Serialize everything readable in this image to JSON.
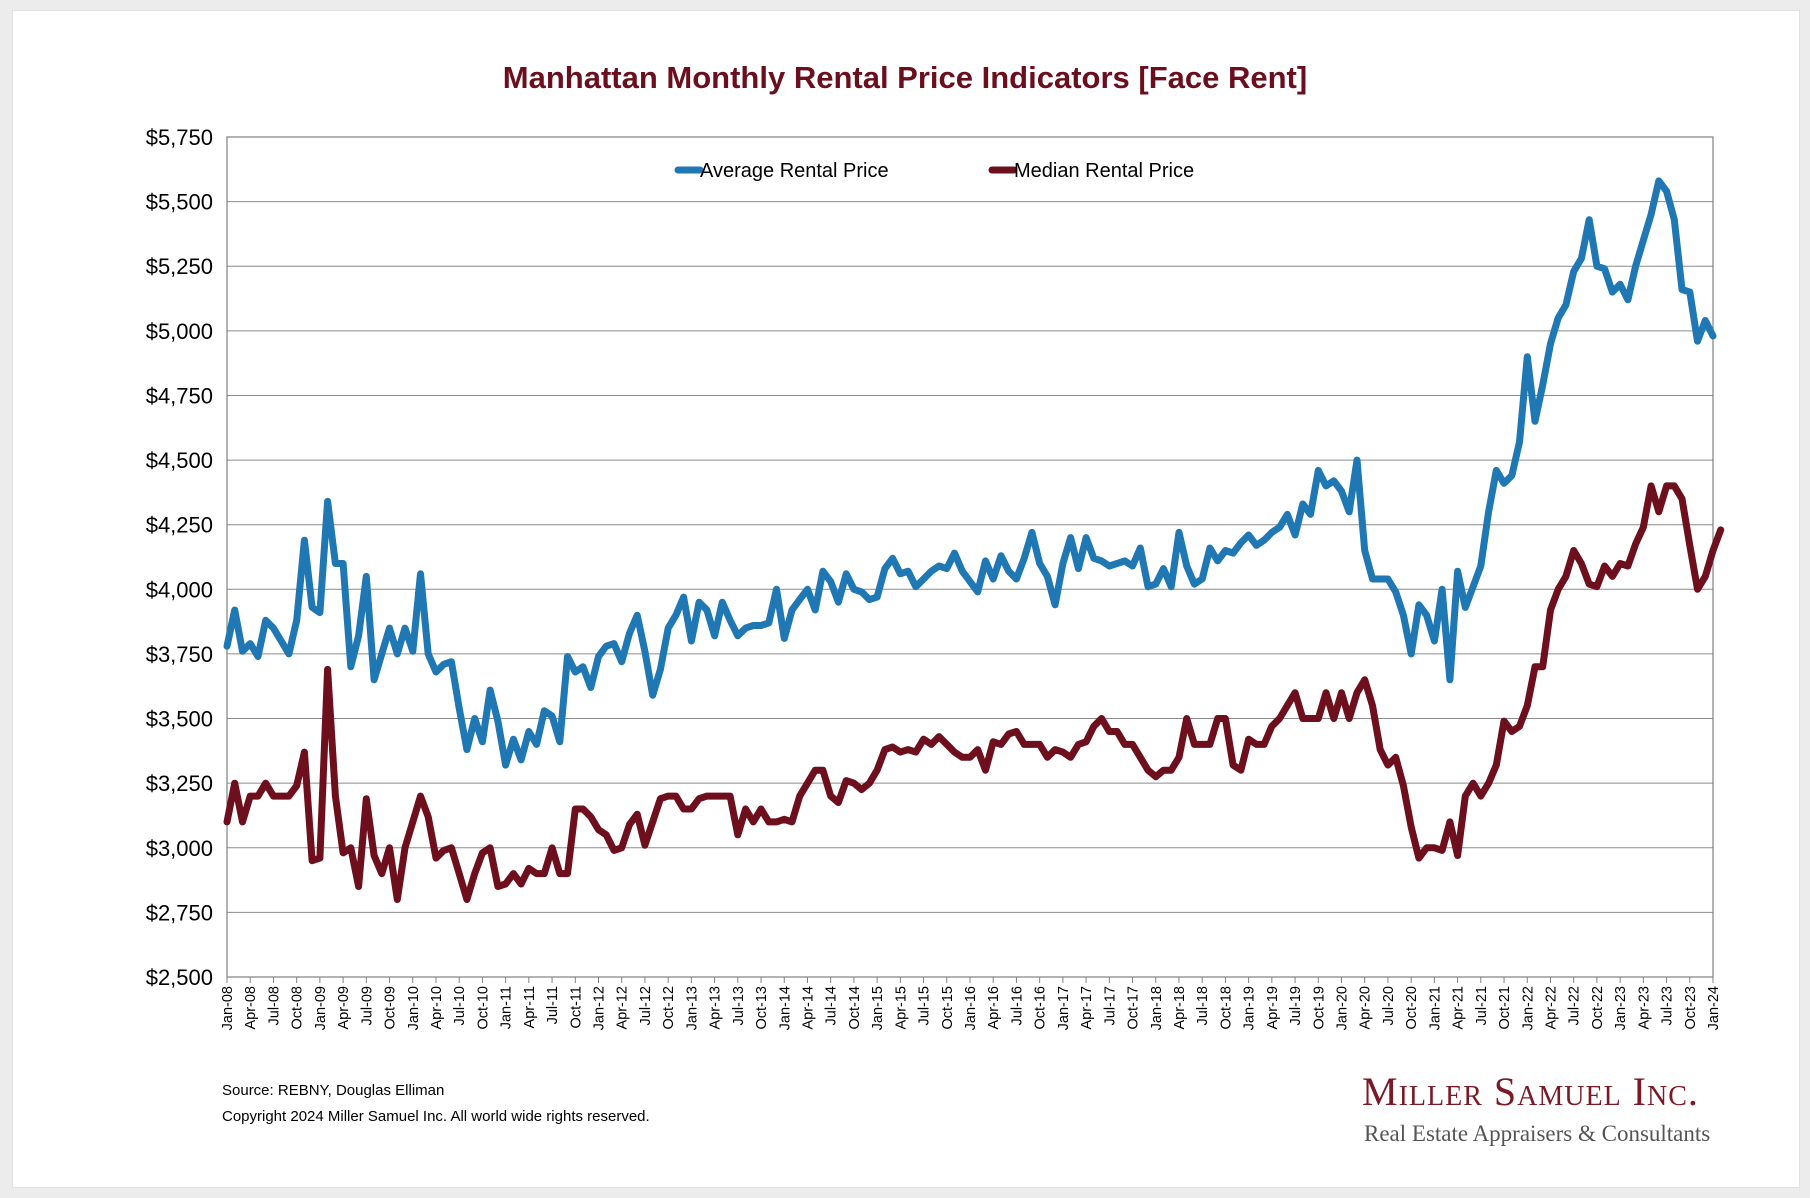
{
  "colors": {
    "title": "#6b0f1e",
    "average": "#1f77b4",
    "median": "#6d0f1d",
    "logo": "#7b1a26"
  },
  "footer": {
    "source": "Source: REBNY, Douglas Elliman",
    "copyright": "Copyright 2024 Miller Samuel Inc.  All world wide rights reserved."
  },
  "logo": {
    "name": "Miller Samuel Inc.",
    "tagline": "Real Estate Appraisers & Consultants"
  },
  "chart_data": {
    "type": "line",
    "title": "Manhattan Monthly Rental Price Indicators [Face Rent]",
    "xlabel": "",
    "ylabel": "",
    "ylim": [
      2500,
      5750
    ],
    "y_ticks": [
      "$2,500",
      "$2,750",
      "$3,000",
      "$3,250",
      "$3,500",
      "$3,750",
      "$4,000",
      "$4,250",
      "$4,500",
      "$4,750",
      "$5,000",
      "$5,250",
      "$5,500",
      "$5,750"
    ],
    "x_tick_labels": [
      "Jan-08",
      "Apr-08",
      "Jul-08",
      "Oct-08",
      "Jan-09",
      "Apr-09",
      "Jul-09",
      "Oct-09",
      "Jan-10",
      "Apr-10",
      "Jul-10",
      "Oct-10",
      "Jan-11",
      "Apr-11",
      "Jul-11",
      "Oct-11",
      "Jan-12",
      "Apr-12",
      "Jul-12",
      "Oct-12",
      "Jan-13",
      "Apr-13",
      "Jul-13",
      "Oct-13",
      "Jan-14",
      "Apr-14",
      "Jul-14",
      "Oct-14",
      "Jan-15",
      "Apr-15",
      "Jul-15",
      "Oct-15",
      "Jan-16",
      "Apr-16",
      "Jul-16",
      "Oct-16",
      "Jan-17",
      "Apr-17",
      "Jul-17",
      "Oct-17",
      "Jan-18",
      "Apr-18",
      "Jul-18",
      "Oct-18",
      "Jan-19",
      "Apr-19",
      "Jul-19",
      "Oct-19",
      "Jan-20",
      "Apr-20",
      "Jul-20",
      "Oct-20",
      "Jan-21",
      "Apr-21",
      "Jul-21",
      "Oct-21",
      "Jan-22",
      "Apr-22",
      "Jul-22",
      "Oct-22",
      "Jan-23",
      "Apr-23",
      "Jul-23",
      "Oct-23",
      "Jan-24"
    ],
    "x_start": "Jan-08",
    "x_frequency": "monthly",
    "grid": true,
    "legend_position": "top-center",
    "series": [
      {
        "name": "Average Rental Price",
        "values": [
          3780,
          3920,
          3760,
          3790,
          3740,
          3880,
          3850,
          3800,
          3750,
          3880,
          4190,
          3930,
          3910,
          4340,
          4100,
          4100,
          3700,
          3820,
          4050,
          3650,
          3750,
          3850,
          3750,
          3850,
          3760,
          4060,
          3750,
          3680,
          3710,
          3720,
          3540,
          3380,
          3500,
          3410,
          3610,
          3490,
          3320,
          3420,
          3340,
          3450,
          3400,
          3530,
          3510,
          3410,
          3740,
          3680,
          3700,
          3620,
          3740,
          3780,
          3790,
          3720,
          3830,
          3900,
          3760,
          3590,
          3690,
          3850,
          3900,
          3970,
          3800,
          3950,
          3920,
          3820,
          3950,
          3880,
          3820,
          3850,
          3860,
          3860,
          3870,
          4000,
          3810,
          3920,
          3960,
          4000,
          3920,
          4070,
          4030,
          3950,
          4060,
          4000,
          3990,
          3960,
          3970,
          4080,
          4120,
          4060,
          4070,
          4010,
          4040,
          4070,
          4090,
          4080,
          4140,
          4070,
          4030,
          3990,
          4110,
          4040,
          4130,
          4070,
          4040,
          4120,
          4220,
          4100,
          4050,
          3940,
          4100,
          4200,
          4080,
          4200,
          4120,
          4110,
          4090,
          4100,
          4110,
          4090,
          4160,
          4010,
          4020,
          4080,
          4010,
          4220,
          4090,
          4020,
          4040,
          4160,
          4110,
          4150,
          4140,
          4180,
          4210,
          4170,
          4190,
          4220,
          4240,
          4290,
          4210,
          4330,
          4290,
          4460,
          4400,
          4420,
          4380,
          4300,
          4500,
          4150,
          4040,
          4040,
          4040,
          3990,
          3900,
          3750,
          3940,
          3900,
          3800,
          4000,
          3650,
          4070,
          3930,
          4010,
          4090,
          4300,
          4460,
          4410,
          4440,
          4570,
          4900,
          4650,
          4790,
          4950,
          5050,
          5100,
          5230,
          5280,
          5430,
          5250,
          5240,
          5150,
          5180,
          5120,
          5250,
          5350,
          5450,
          5580,
          5540,
          5430,
          5160,
          5150,
          4960,
          5040,
          4980
        ]
      },
      {
        "name": "Median Rental Price",
        "values": [
          3100,
          3250,
          3100,
          3200,
          3200,
          3250,
          3200,
          3200,
          3200,
          3240,
          3370,
          2950,
          2960,
          3690,
          3200,
          2980,
          3000,
          2850,
          3190,
          2970,
          2900,
          3000,
          2800,
          3000,
          3100,
          3200,
          3120,
          2960,
          2990,
          3000,
          2900,
          2800,
          2900,
          2980,
          3000,
          2850,
          2860,
          2900,
          2860,
          2920,
          2900,
          2900,
          3000,
          2900,
          2900,
          3150,
          3150,
          3120,
          3070,
          3050,
          2990,
          3000,
          3090,
          3130,
          3010,
          3100,
          3190,
          3200,
          3200,
          3150,
          3150,
          3190,
          3200,
          3200,
          3200,
          3200,
          3050,
          3150,
          3100,
          3150,
          3100,
          3100,
          3110,
          3100,
          3200,
          3250,
          3300,
          3300,
          3200,
          3175,
          3260,
          3250,
          3225,
          3250,
          3300,
          3380,
          3390,
          3370,
          3380,
          3370,
          3420,
          3400,
          3430,
          3400,
          3370,
          3350,
          3350,
          3380,
          3300,
          3410,
          3400,
          3440,
          3450,
          3400,
          3400,
          3400,
          3350,
          3380,
          3370,
          3350,
          3400,
          3410,
          3470,
          3500,
          3450,
          3450,
          3400,
          3400,
          3350,
          3300,
          3275,
          3300,
          3300,
          3350,
          3500,
          3400,
          3400,
          3400,
          3500,
          3500,
          3320,
          3300,
          3420,
          3400,
          3400,
          3470,
          3500,
          3550,
          3600,
          3500,
          3500,
          3500,
          3600,
          3500,
          3600,
          3500,
          3600,
          3650,
          3550,
          3380,
          3320,
          3350,
          3240,
          3080,
          2960,
          3000,
          3000,
          2990,
          3100,
          2970,
          3200,
          3250,
          3200,
          3250,
          3320,
          3490,
          3450,
          3470,
          3550,
          3700,
          3700,
          3920,
          4000,
          4050,
          4150,
          4100,
          4020,
          4010,
          4090,
          4050,
          4100,
          4090,
          4175,
          4240,
          4400,
          4300,
          4400,
          4400,
          4350,
          4170,
          4000,
          4050,
          4150,
          4230
        ]
      }
    ]
  }
}
